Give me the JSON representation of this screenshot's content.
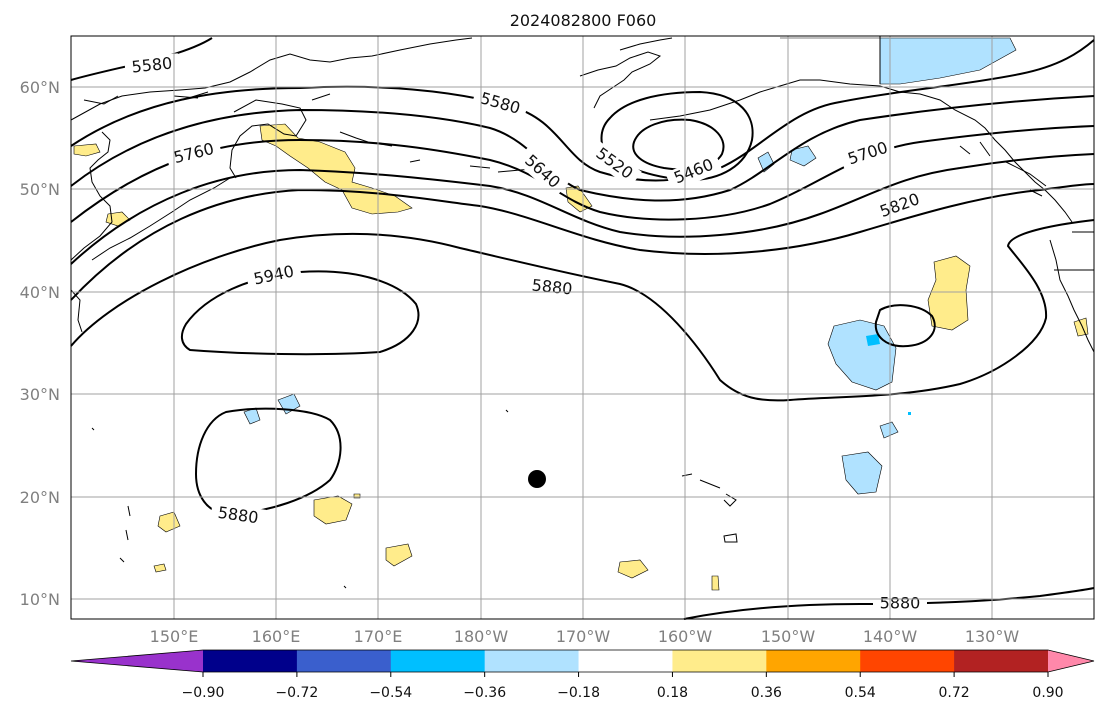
{
  "title": "2024082800 F060",
  "lat_labels": [
    "60°N",
    "50°N",
    "40°N",
    "30°N",
    "20°N",
    "10°N"
  ],
  "lon_labels": [
    "150°E",
    "160°E",
    "170°E",
    "180°W",
    "170°W",
    "160°W",
    "150°W",
    "140°W",
    "130°W"
  ],
  "contour_labels": [
    "5580",
    "5580",
    "5760",
    "5640",
    "5520",
    "5460",
    "5700",
    "5820",
    "5940",
    "5880",
    "5880",
    "5880"
  ],
  "colorbar": {
    "colors": [
      "#9932cc",
      "#00008b",
      "#3a5fcd",
      "#00bfff",
      "#b0e2ff",
      "#ffffff",
      "#ffec8b",
      "#ffa500",
      "#ff4500",
      "#b22222",
      "#ff88aa"
    ],
    "tick_labels": [
      "−0.90",
      "−0.72",
      "−0.54",
      "−0.36",
      "−0.18",
      "0.18",
      "0.36",
      "0.54",
      "0.72",
      "0.90"
    ]
  },
  "colors": {
    "positive_fill": "#ffec8b",
    "negative_fill": "#b0e2ff",
    "marker": "#000000"
  }
}
